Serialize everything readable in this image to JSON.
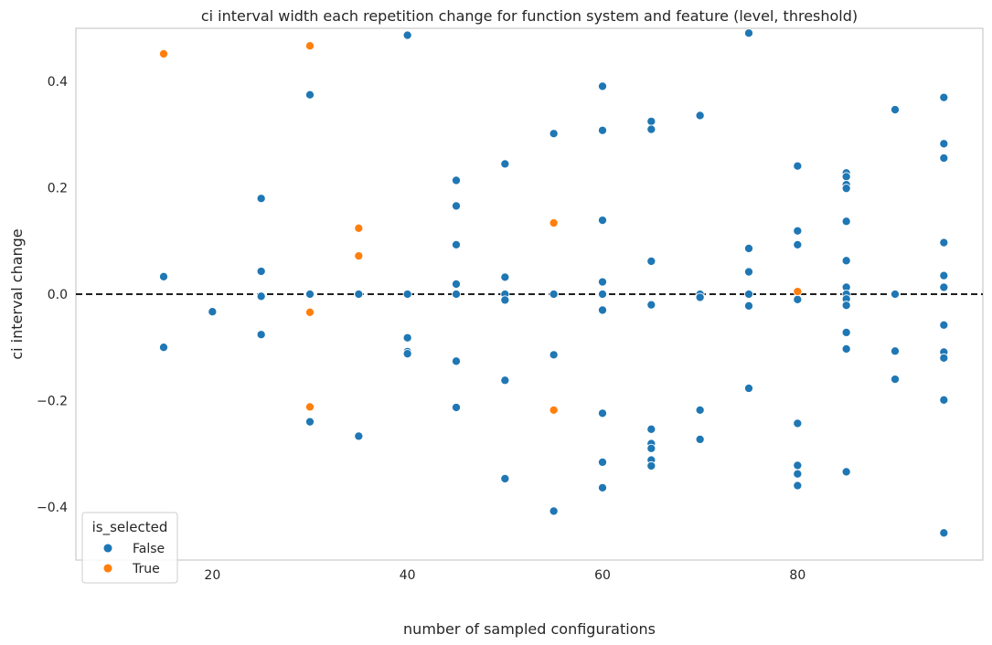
{
  "chart_data": {
    "type": "scatter",
    "title": "ci interval width each repetition change for function system and feature (level, threshold)",
    "xlabel": "number of sampled configurations",
    "ylabel": "ci interval change",
    "xlim": [
      6,
      99
    ],
    "ylim": [
      -0.5,
      0.5
    ],
    "xticks": [
      20,
      40,
      60,
      80
    ],
    "yticks": [
      -0.4,
      -0.2,
      0.0,
      0.2,
      0.4
    ],
    "xtick_labels": [
      "20",
      "40",
      "60",
      "80"
    ],
    "ytick_labels": [
      "−0.4",
      "−0.2",
      "0.0",
      "0.2",
      "0.4"
    ],
    "grid": false,
    "reference_line": {
      "y": 0.0,
      "style": "dashed",
      "color": "#000000"
    },
    "legend": {
      "title": "is_selected",
      "position": "lower-left",
      "entries": [
        {
          "label": "False",
          "color": "#1f77b4"
        },
        {
          "label": "True",
          "color": "#ff7f0e"
        }
      ]
    },
    "series": [
      {
        "name": "False",
        "color": "#1f77b4",
        "points": [
          [
            15,
            0.033
          ],
          [
            15,
            -0.1
          ],
          [
            20,
            -0.033
          ],
          [
            25,
            0.18
          ],
          [
            25,
            0.043
          ],
          [
            25,
            -0.004
          ],
          [
            25,
            -0.076
          ],
          [
            30,
            0.375
          ],
          [
            30,
            0.0
          ],
          [
            30,
            -0.24
          ],
          [
            35,
            0.0
          ],
          [
            35,
            -0.267
          ],
          [
            40,
            0.487
          ],
          [
            40,
            0.0
          ],
          [
            40,
            -0.082
          ],
          [
            40,
            -0.108
          ],
          [
            40,
            -0.112
          ],
          [
            45,
            0.214
          ],
          [
            45,
            0.166
          ],
          [
            45,
            0.093
          ],
          [
            45,
            0.019
          ],
          [
            45,
            0.0
          ],
          [
            45,
            -0.126
          ],
          [
            45,
            -0.213
          ],
          [
            50,
            0.245
          ],
          [
            50,
            0.032
          ],
          [
            50,
            0.0
          ],
          [
            50,
            -0.011
          ],
          [
            50,
            -0.162
          ],
          [
            50,
            -0.347
          ],
          [
            55,
            0.302
          ],
          [
            55,
            0.0
          ],
          [
            55,
            -0.114
          ],
          [
            55,
            -0.408
          ],
          [
            60,
            0.391
          ],
          [
            60,
            0.308
          ],
          [
            60,
            0.139
          ],
          [
            60,
            0.023
          ],
          [
            60,
            0.0
          ],
          [
            60,
            -0.03
          ],
          [
            60,
            -0.224
          ],
          [
            60,
            -0.316
          ],
          [
            60,
            -0.364
          ],
          [
            65,
            0.325
          ],
          [
            65,
            0.31
          ],
          [
            65,
            0.062
          ],
          [
            65,
            -0.02
          ],
          [
            65,
            -0.254
          ],
          [
            65,
            -0.281
          ],
          [
            65,
            -0.29
          ],
          [
            65,
            -0.312
          ],
          [
            65,
            -0.323
          ],
          [
            70,
            0.336
          ],
          [
            70,
            0.0
          ],
          [
            70,
            -0.006
          ],
          [
            70,
            -0.218
          ],
          [
            70,
            -0.273
          ],
          [
            75,
            0.491
          ],
          [
            75,
            0.086
          ],
          [
            75,
            0.042
          ],
          [
            75,
            0.0
          ],
          [
            75,
            -0.022
          ],
          [
            75,
            -0.177
          ],
          [
            80,
            0.241
          ],
          [
            80,
            0.119
          ],
          [
            80,
            0.093
          ],
          [
            80,
            -0.01
          ],
          [
            80,
            -0.243
          ],
          [
            80,
            -0.322
          ],
          [
            80,
            -0.338
          ],
          [
            80,
            -0.36
          ],
          [
            85,
            0.228
          ],
          [
            85,
            0.221
          ],
          [
            85,
            0.206
          ],
          [
            85,
            0.199
          ],
          [
            85,
            0.137
          ],
          [
            85,
            0.063
          ],
          [
            85,
            0.013
          ],
          [
            85,
            0.0
          ],
          [
            85,
            -0.009
          ],
          [
            85,
            -0.021
          ],
          [
            85,
            -0.072
          ],
          [
            85,
            -0.103
          ],
          [
            85,
            -0.334
          ],
          [
            90,
            0.347
          ],
          [
            90,
            0.0
          ],
          [
            90,
            -0.107
          ],
          [
            90,
            -0.16
          ],
          [
            95,
            0.37
          ],
          [
            95,
            0.283
          ],
          [
            95,
            0.256
          ],
          [
            95,
            0.097
          ],
          [
            95,
            0.035
          ],
          [
            95,
            0.013
          ],
          [
            95,
            -0.058
          ],
          [
            95,
            -0.109
          ],
          [
            95,
            -0.12
          ],
          [
            95,
            -0.199
          ],
          [
            95,
            -0.449
          ]
        ]
      },
      {
        "name": "True",
        "color": "#ff7f0e",
        "points": [
          [
            15,
            0.452
          ],
          [
            30,
            0.467
          ],
          [
            30,
            -0.034
          ],
          [
            30,
            -0.212
          ],
          [
            35,
            0.124
          ],
          [
            35,
            0.072
          ],
          [
            55,
            0.134
          ],
          [
            55,
            -0.218
          ],
          [
            80,
            0.005
          ]
        ]
      }
    ]
  }
}
